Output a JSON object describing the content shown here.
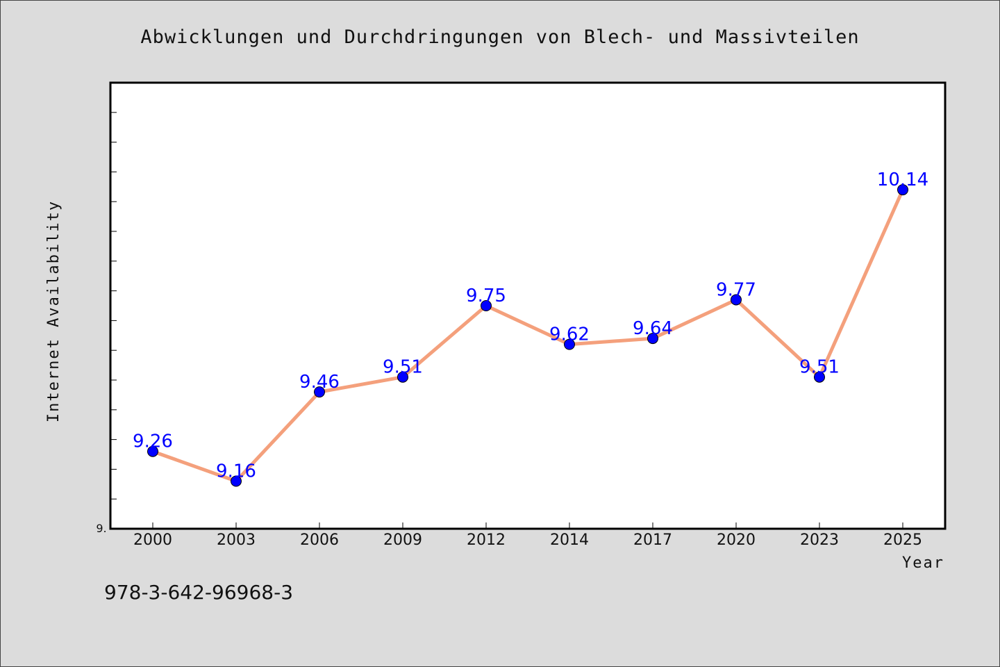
{
  "chart_data": {
    "type": "line",
    "title": "Abwicklungen und Durchdringungen von Blech- und Massivteilen",
    "xlabel": "Year",
    "ylabel": "Internet Availability",
    "categories": [
      "2000",
      "2003",
      "2006",
      "2009",
      "2012",
      "2014",
      "2017",
      "2020",
      "2023",
      "2025"
    ],
    "series": [
      {
        "values": [
          9.26,
          9.16,
          9.46,
          9.51,
          9.75,
          9.62,
          9.64,
          9.77,
          9.51,
          10.14
        ],
        "labels": [
          "9.26",
          "9.16",
          "9.46",
          "9.51",
          "9.75",
          "9.62",
          "9.64",
          "9.77",
          "9.51",
          "10.14"
        ],
        "line_color": "#f4a07c",
        "marker_color": "#0000ff"
      }
    ],
    "ylim": [
      9.0,
      10.5
    ],
    "y_tick_count": 15,
    "y_origin_label": "9.",
    "grid": false,
    "legend": "none"
  },
  "footer": {
    "isbn": "978-3-642-96968-3"
  },
  "colors": {
    "background": "#dcdcdc",
    "plot_background": "#ffffff",
    "line": "#f4a07c",
    "marker": "#0000ff",
    "data_label": "#0000ff"
  }
}
